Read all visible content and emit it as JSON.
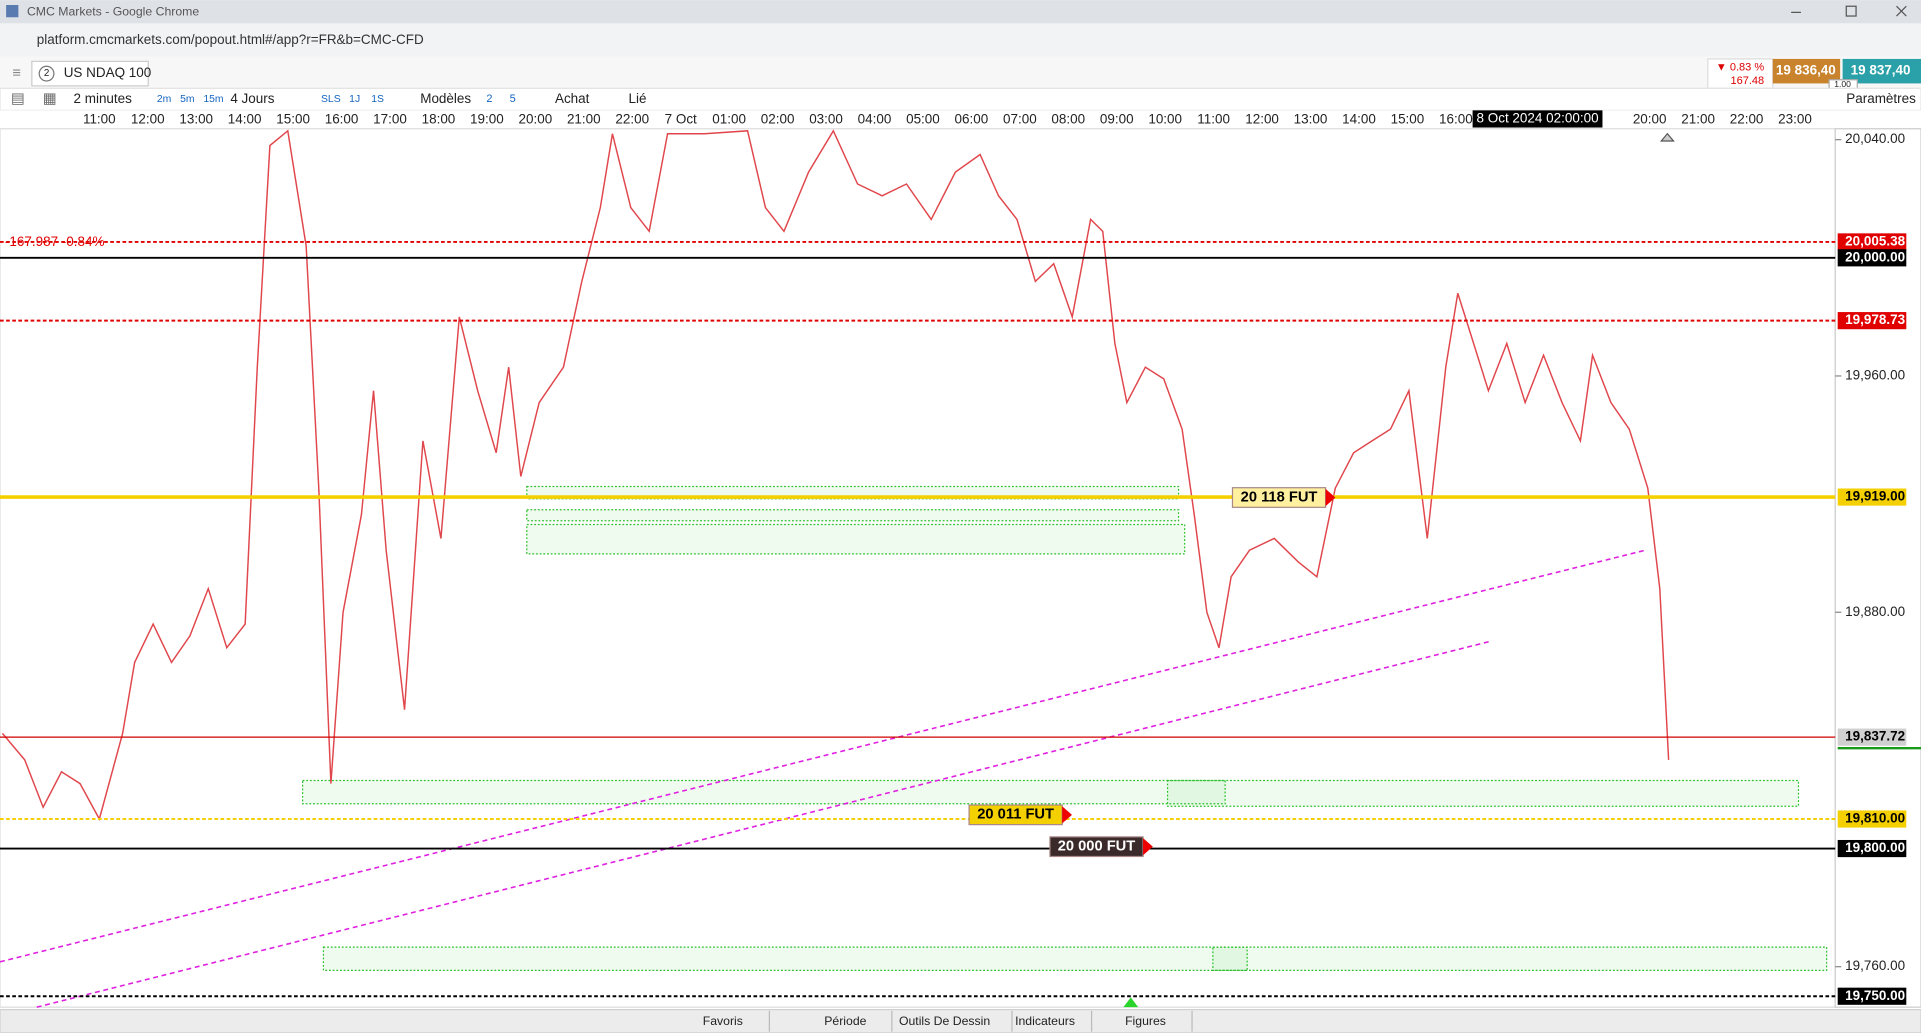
{
  "ui": {
    "window_title": "CMC Markets - Google Chrome",
    "url": "platform.cmcmarkets.com/popout.html#/app?r=FR&b=CMC-CFD",
    "tab": {
      "number": "2",
      "name": "US NDAQ 100"
    },
    "quote": {
      "change_pct": "▼ 0.83 %",
      "change": "167.48",
      "sell": "19 836,40",
      "buy": "19 837,40",
      "spread": "1.00"
    },
    "toolbar": {
      "interval": "2 minutes",
      "periods": [
        "2m",
        "5m",
        "15m"
      ],
      "range": "4 Jours",
      "chart_modes": [
        "SLS",
        "1J",
        "1S"
      ],
      "templates": "Modèles",
      "layouts": [
        "2",
        "5"
      ],
      "buy": "Achat",
      "link": "Lié",
      "settings": "Paramètres"
    },
    "bottom_tabs": [
      "Favoris",
      "Période",
      "Outils De Dessin",
      "Indicateurs",
      "Figures"
    ]
  },
  "chart_data": {
    "type": "line",
    "color": "#e0474c",
    "x_labels": [
      "11:00",
      "12:00",
      "13:00",
      "14:00",
      "15:00",
      "16:00",
      "17:00",
      "18:00",
      "19:00",
      "20:00",
      "21:00",
      "22:00",
      "7 Oct",
      "01:00",
      "02:00",
      "03:00",
      "04:00",
      "05:00",
      "06:00",
      "07:00",
      "08:00",
      "09:00",
      "10:00",
      "11:00",
      "12:00",
      "13:00",
      "14:00",
      "15:00",
      "16:00",
      null,
      null,
      null,
      "20:00",
      "21:00",
      "22:00",
      "23:00"
    ],
    "x": [
      -2.0,
      -1.54,
      -1.16,
      -0.78,
      -0.4,
      0,
      0.48,
      0.73,
      1.11,
      1.49,
      1.87,
      2.25,
      2.63,
      3.01,
      3.26,
      3.52,
      3.89,
      4.27,
      4.53,
      4.78,
      5.03,
      5.41,
      5.66,
      5.92,
      6.3,
      6.68,
      7.05,
      7.43,
      7.81,
      8.19,
      8.45,
      8.7,
      9.08,
      9.58,
      9.96,
      10.34,
      10.59,
      10.97,
      11.35,
      11.73,
      12.49,
      13.38,
      13.75,
      14.13,
      14.64,
      15.15,
      15.65,
      16.16,
      16.66,
      17.17,
      17.67,
      18.18,
      18.56,
      18.94,
      19.32,
      19.7,
      20.08,
      20.46,
      20.71,
      20.96,
      21.21,
      21.59,
      21.97,
      22.35,
      22.6,
      22.86,
      23.11,
      23.36,
      23.74,
      24.25,
      24.75,
      25.13,
      25.51,
      25.89,
      26.27,
      26.65,
      27.03,
      27.41,
      27.79,
      28.04,
      28.29,
      28.67,
      29.05,
      29.43,
      29.81,
      30.19,
      30.57,
      30.82,
      31.2,
      31.58,
      31.96,
      32.21,
      32.39
    ],
    "values": [
      19839,
      19830,
      19814,
      19826,
      19822,
      19810,
      19839,
      19863,
      19876,
      19863,
      19872,
      19888,
      19868,
      19876,
      19963,
      20038,
      20043,
      20004,
      19922,
      19822,
      19880,
      19913,
      19955,
      19901,
      19847,
      19938,
      19905,
      19980,
      19955,
      19934,
      19963,
      19926,
      19951,
      19963,
      19992,
      20017,
      20042,
      20017,
      20009,
      20042,
      20042,
      20043,
      20017,
      20009,
      20029,
      20043,
      20025,
      20021,
      20025,
      20013,
      20029,
      20035,
      20021,
      20013,
      19992,
      19998,
      19980,
      20013,
      20009,
      19971,
      19951,
      19963,
      19959,
      19942,
      19913,
      19880,
      19868,
      19892,
      19901,
      19905,
      19897,
      19892,
      19922,
      19934,
      19938,
      19942,
      19955,
      19905,
      19963,
      19988,
      19975,
      19955,
      19971,
      19951,
      19967,
      19951,
      19938,
      19967,
      19951,
      19942,
      19922,
      19888,
      19830
    ],
    "xlim": [
      -2.05,
      35.83
    ],
    "ylim": [
      19746.3,
      20043.7
    ],
    "yticks": [
      {
        "value": 20040,
        "label": "20,040.00"
      },
      {
        "value": 19960,
        "label": "19,960.00"
      },
      {
        "value": 19880,
        "label": "19,880.00"
      },
      {
        "value": 19760,
        "label": "19,760.00"
      }
    ],
    "levels": [
      {
        "value": 20005.38,
        "label": "20,005.38",
        "color": "#e00000",
        "style": "dashed"
      },
      {
        "value": 20000,
        "label": "20,000.00",
        "color": "#000000",
        "style": "solid"
      },
      {
        "value": 19978.73,
        "label": "19,978.73",
        "color": "#e00000",
        "style": "dashed"
      },
      {
        "value": 19919,
        "label": "19,919.00",
        "color": "#f5d000",
        "style": "thick"
      },
      {
        "value": 19837.72,
        "label": "19,837.72",
        "color": "#d00000",
        "style": "thin",
        "label_bg": "#d0d0d0"
      },
      {
        "value": 19810,
        "label": "19,810.00",
        "color": "#f5d000",
        "style": "dashed"
      },
      {
        "value": 19800,
        "label": "19,800.00",
        "color": "#000000",
        "style": "solid"
      },
      {
        "value": 19750,
        "label": "19,750.00",
        "color": "#000000",
        "style": "dashed"
      }
    ],
    "crosshair_label": "8 Oct 2024 02:00:00",
    "change_label": "-167.987 -0.84%",
    "markers": [
      "20 118 FUT",
      "20 011 FUT",
      "20 000 FUT"
    ]
  }
}
